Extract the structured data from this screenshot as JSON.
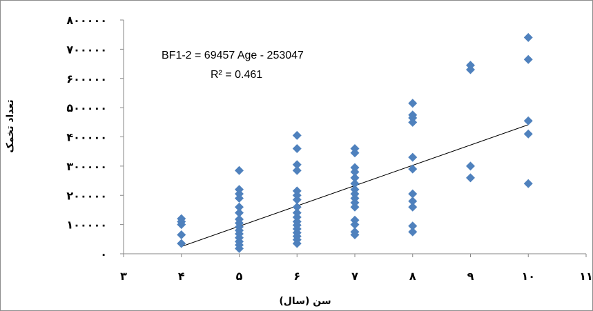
{
  "chart_data": {
    "type": "scatter",
    "title": "",
    "xlabel": "سن (سال)",
    "ylabel": "تعداد تخمک",
    "xlim": [
      3,
      11
    ],
    "ylim": [
      0,
      800000
    ],
    "x_ticks": [
      3,
      4,
      5,
      6,
      7,
      8,
      9,
      10,
      11
    ],
    "x_tick_labels": [
      "۳",
      "۴",
      "۵",
      "۶",
      "۷",
      "۸",
      "۹",
      "۱۰",
      "۱۱"
    ],
    "y_ticks": [
      0,
      100000,
      200000,
      300000,
      400000,
      500000,
      600000,
      700000,
      800000
    ],
    "y_tick_labels": [
      "۰",
      "۱۰۰۰۰۰",
      "۲۰۰۰۰۰",
      "۳۰۰۰۰۰",
      "۴۰۰۰۰۰",
      "۵۰۰۰۰۰",
      "۶۰۰۰۰۰",
      "۷۰۰۰۰۰",
      "۸۰۰۰۰۰"
    ],
    "grid": false,
    "legend": "none",
    "marker": "diamond",
    "marker_color": "#4f81bd",
    "series": [
      {
        "points": [
          [
            4,
            35000
          ],
          [
            4,
            65000
          ],
          [
            4,
            100000
          ],
          [
            4,
            110000
          ],
          [
            4,
            120000
          ],
          [
            5,
            18000
          ],
          [
            5,
            30000
          ],
          [
            5,
            42000
          ],
          [
            5,
            55000
          ],
          [
            5,
            68000
          ],
          [
            5,
            80000
          ],
          [
            5,
            92000
          ],
          [
            5,
            105000
          ],
          [
            5,
            118000
          ],
          [
            5,
            140000
          ],
          [
            5,
            160000
          ],
          [
            5,
            190000
          ],
          [
            5,
            205000
          ],
          [
            5,
            220000
          ],
          [
            5,
            285000
          ],
          [
            6,
            35000
          ],
          [
            6,
            48000
          ],
          [
            6,
            60000
          ],
          [
            6,
            72000
          ],
          [
            6,
            85000
          ],
          [
            6,
            98000
          ],
          [
            6,
            110000
          ],
          [
            6,
            125000
          ],
          [
            6,
            140000
          ],
          [
            6,
            160000
          ],
          [
            6,
            185000
          ],
          [
            6,
            200000
          ],
          [
            6,
            215000
          ],
          [
            6,
            285000
          ],
          [
            6,
            305000
          ],
          [
            6,
            360000
          ],
          [
            6,
            405000
          ],
          [
            7,
            65000
          ],
          [
            7,
            75000
          ],
          [
            7,
            100000
          ],
          [
            7,
            115000
          ],
          [
            7,
            160000
          ],
          [
            7,
            175000
          ],
          [
            7,
            190000
          ],
          [
            7,
            205000
          ],
          [
            7,
            220000
          ],
          [
            7,
            240000
          ],
          [
            7,
            260000
          ],
          [
            7,
            280000
          ],
          [
            7,
            295000
          ],
          [
            7,
            345000
          ],
          [
            7,
            360000
          ],
          [
            8,
            75000
          ],
          [
            8,
            95000
          ],
          [
            8,
            160000
          ],
          [
            8,
            180000
          ],
          [
            8,
            205000
          ],
          [
            8,
            290000
          ],
          [
            8,
            330000
          ],
          [
            8,
            450000
          ],
          [
            8,
            465000
          ],
          [
            8,
            475000
          ],
          [
            8,
            515000
          ],
          [
            9,
            260000
          ],
          [
            9,
            300000
          ],
          [
            9,
            630000
          ],
          [
            9,
            645000
          ],
          [
            10,
            240000
          ],
          [
            10,
            410000
          ],
          [
            10,
            455000
          ],
          [
            10,
            665000
          ],
          [
            10,
            740000
          ]
        ]
      }
    ],
    "trendline": {
      "type": "linear",
      "slope": 69457,
      "intercept": -253047,
      "x_range": [
        4,
        10
      ],
      "color": "#000000"
    },
    "annotations": {
      "equation": "BF1-2 = 69457 Age - 253047",
      "r_squared": "R² = 0.461"
    }
  }
}
